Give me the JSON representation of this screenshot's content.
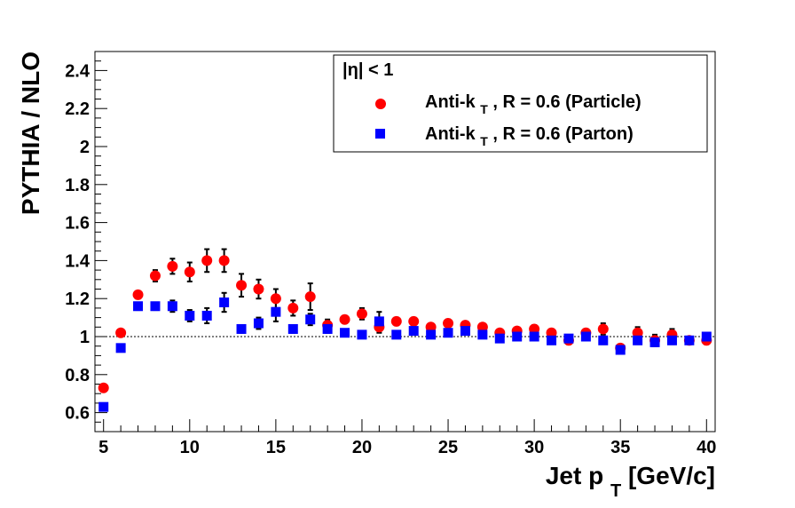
{
  "chart_data": {
    "type": "scatter",
    "xlabel": "Jet p_T [GeV/c]",
    "xlabel_main": "Jet p",
    "xlabel_sub": "T",
    "xlabel_tail": " [GeV/c]",
    "ylabel": "PYTHIA / NLO",
    "xlim": [
      4.5,
      40.5
    ],
    "ylim": [
      0.5,
      2.5
    ],
    "xticks": [
      5,
      10,
      15,
      20,
      25,
      30,
      35,
      40
    ],
    "yticks": [
      0.6,
      0.8,
      1,
      1.2,
      1.4,
      1.6,
      1.8,
      2,
      2.2,
      2.4
    ],
    "reference_line": 1,
    "grid": false,
    "legend": {
      "placement": "top-right",
      "header": "|η| < 1",
      "entries": [
        {
          "main": "Anti-k",
          "sub": "T",
          "tail": ", R = 0.6 (Particle)"
        },
        {
          "main": "Anti-k",
          "sub": "T",
          "tail": ", R = 0.6 (Parton)"
        }
      ]
    },
    "series": [
      {
        "name": "Anti-k_T, R = 0.6 (Particle)",
        "marker": "circle",
        "color": "#ff0000",
        "x": [
          5,
          6,
          7,
          8,
          9,
          10,
          11,
          12,
          13,
          14,
          15,
          16,
          17,
          18,
          19,
          20,
          21,
          22,
          23,
          24,
          25,
          26,
          27,
          28,
          29,
          30,
          31,
          32,
          33,
          34,
          35,
          36,
          37,
          38,
          39,
          40
        ],
        "y": [
          0.73,
          1.02,
          1.22,
          1.32,
          1.37,
          1.34,
          1.4,
          1.4,
          1.27,
          1.25,
          1.2,
          1.15,
          1.21,
          1.06,
          1.09,
          1.12,
          1.05,
          1.08,
          1.08,
          1.05,
          1.07,
          1.06,
          1.05,
          1.02,
          1.03,
          1.04,
          1.02,
          0.98,
          1.02,
          1.04,
          0.94,
          1.02,
          0.98,
          1.01,
          0.98,
          0.98
        ],
        "err": [
          0.01,
          0.01,
          0.02,
          0.03,
          0.04,
          0.05,
          0.06,
          0.06,
          0.06,
          0.05,
          0.05,
          0.04,
          0.07,
          0.03,
          0.02,
          0.03,
          0.03,
          0.02,
          0.02,
          0.02,
          0.02,
          0.02,
          0.02,
          0.01,
          0.01,
          0.02,
          0.02,
          0.02,
          0.02,
          0.03,
          0.02,
          0.03,
          0.03,
          0.03,
          0.02,
          0.02
        ]
      },
      {
        "name": "Anti-k_T, R = 0.6 (Parton)",
        "marker": "square",
        "color": "#0000ff",
        "x": [
          5,
          6,
          7,
          8,
          9,
          10,
          11,
          12,
          13,
          14,
          15,
          16,
          17,
          18,
          19,
          20,
          21,
          22,
          23,
          24,
          25,
          26,
          27,
          28,
          29,
          30,
          31,
          32,
          33,
          34,
          35,
          36,
          37,
          38,
          39,
          40
        ],
        "y": [
          0.63,
          0.94,
          1.16,
          1.16,
          1.16,
          1.11,
          1.11,
          1.18,
          1.04,
          1.07,
          1.13,
          1.04,
          1.09,
          1.04,
          1.02,
          1.01,
          1.08,
          1.01,
          1.03,
          1.01,
          1.02,
          1.03,
          1.01,
          0.99,
          1.0,
          1.0,
          0.98,
          0.99,
          1.0,
          0.98,
          0.93,
          0.98,
          0.97,
          0.98,
          0.98,
          1.0
        ],
        "err": [
          0.01,
          0.01,
          0.02,
          0.02,
          0.03,
          0.03,
          0.04,
          0.05,
          0.02,
          0.03,
          0.05,
          0.02,
          0.03,
          0.02,
          0.01,
          0.01,
          0.05,
          0.01,
          0.01,
          0.01,
          0.01,
          0.01,
          0.01,
          0.01,
          0.01,
          0.01,
          0.02,
          0.01,
          0.02,
          0.02,
          0.02,
          0.02,
          0.02,
          0.02,
          0.02,
          0.02
        ]
      }
    ]
  }
}
